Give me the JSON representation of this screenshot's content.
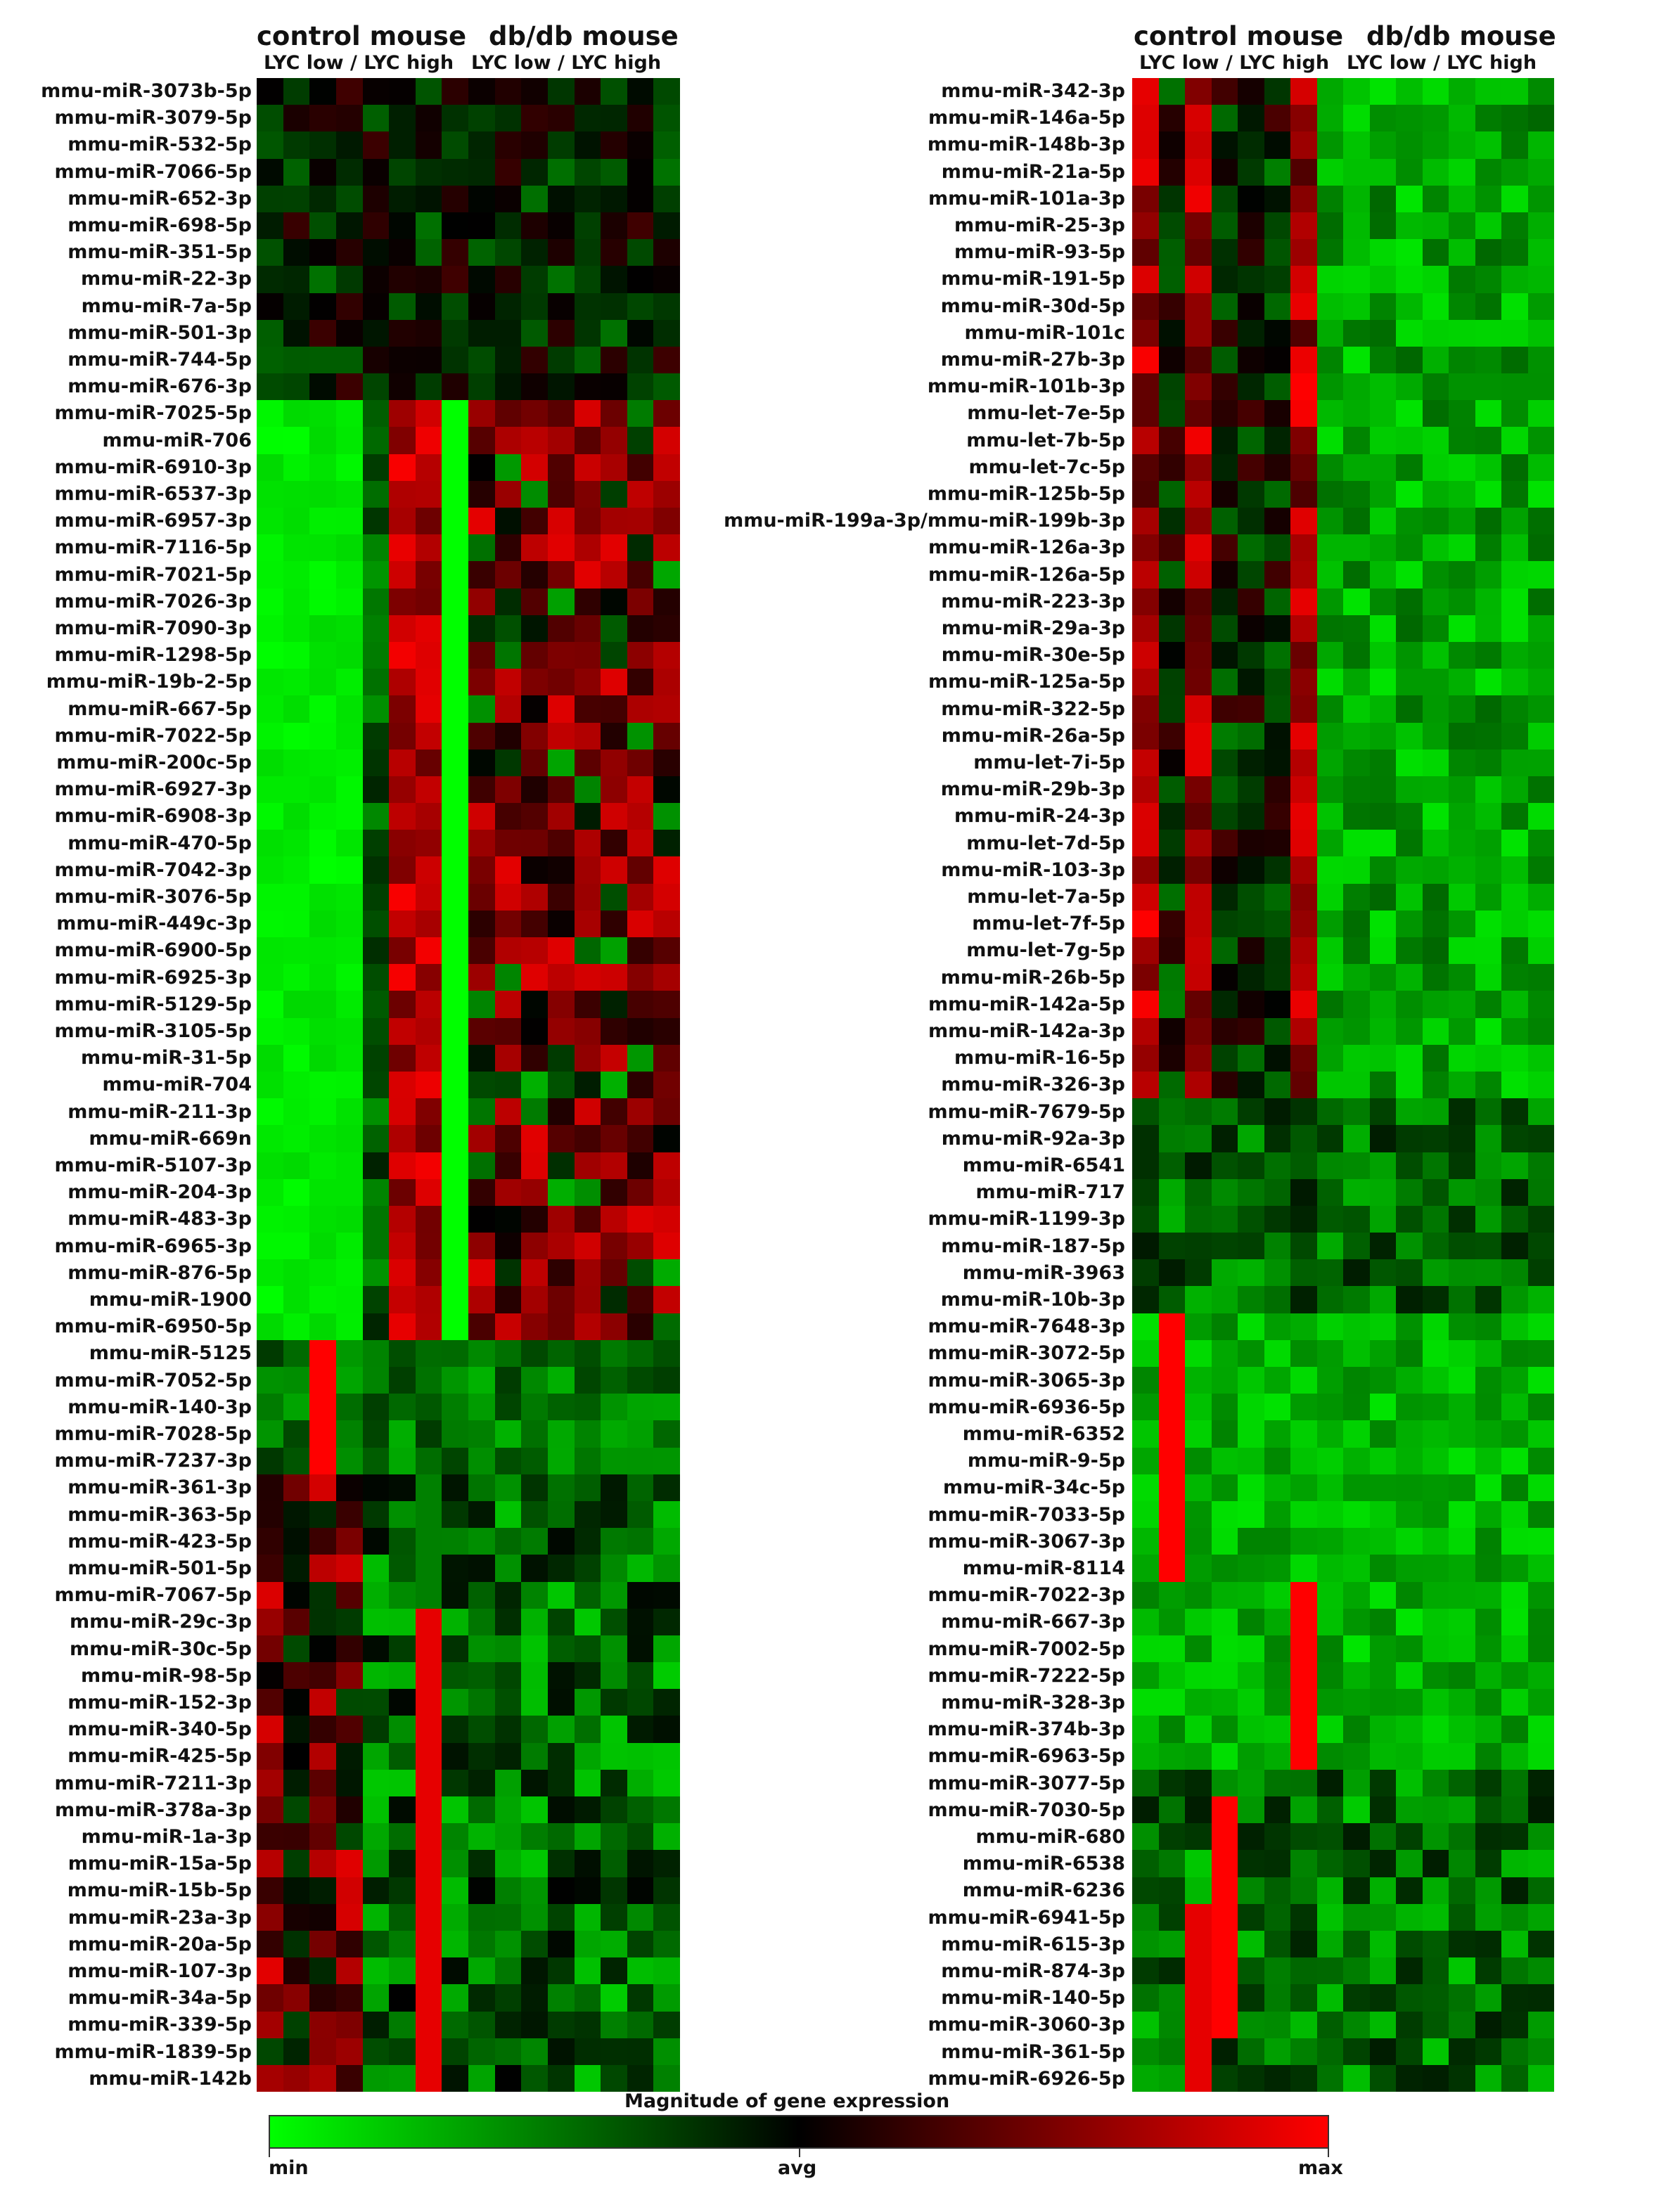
{
  "chart_data": [
    {
      "type": "heatmap",
      "panel": "left",
      "group_titles": [
        "control mouse",
        "db/db mouse"
      ],
      "sub_titles": [
        "LYC low / LYC high",
        "LYC low / LYC high"
      ],
      "rows": [
        "mmu-miR-3073b-5p",
        "mmu-miR-3079-5p",
        "mmu-miR-532-5p",
        "mmu-miR-7066-5p",
        "mmu-miR-652-3p",
        "mmu-miR-698-5p",
        "mmu-miR-351-5p",
        "mmu-miR-22-3p",
        "mmu-miR-7a-5p",
        "mmu-miR-501-3p",
        "mmu-miR-744-5p",
        "mmu-miR-676-3p",
        "mmu-miR-7025-5p",
        "mmu-miR-706",
        "mmu-miR-6910-3p",
        "mmu-miR-6537-3p",
        "mmu-miR-6957-3p",
        "mmu-miR-7116-5p",
        "mmu-miR-7021-5p",
        "mmu-miR-7026-3p",
        "mmu-miR-7090-3p",
        "mmu-miR-1298-5p",
        "mmu-miR-19b-2-5p",
        "mmu-miR-667-5p",
        "mmu-miR-7022-5p",
        "mmu-miR-200c-5p",
        "mmu-miR-6927-3p",
        "mmu-miR-6908-3p",
        "mmu-miR-470-5p",
        "mmu-miR-7042-3p",
        "mmu-miR-3076-5p",
        "mmu-miR-449c-3p",
        "mmu-miR-6900-5p",
        "mmu-miR-6925-3p",
        "mmu-miR-5129-5p",
        "mmu-miR-3105-5p",
        "mmu-miR-31-5p",
        "mmu-miR-704",
        "mmu-miR-211-3p",
        "mmu-miR-669n",
        "mmu-miR-5107-3p",
        "mmu-miR-204-3p",
        "mmu-miR-483-3p",
        "mmu-miR-6965-3p",
        "mmu-miR-876-5p",
        "mmu-miR-1900",
        "mmu-miR-6950-5p",
        "mmu-miR-5125",
        "mmu-miR-7052-5p",
        "mmu-miR-140-3p",
        "mmu-miR-7028-5p",
        "mmu-miR-7237-3p",
        "mmu-miR-361-3p",
        "mmu-miR-363-5p",
        "mmu-miR-423-5p",
        "mmu-miR-501-5p",
        "mmu-miR-7067-5p",
        "mmu-miR-29c-3p",
        "mmu-miR-30c-5p",
        "mmu-miR-98-5p",
        "mmu-miR-152-3p",
        "mmu-miR-340-5p",
        "mmu-miR-425-5p",
        "mmu-miR-7211-3p",
        "mmu-miR-378a-3p",
        "mmu-miR-1a-3p",
        "mmu-miR-15a-5p",
        "mmu-miR-15b-5p",
        "mmu-miR-23a-3p",
        "mmu-miR-20a-5p",
        "mmu-miR-107-3p",
        "mmu-miR-34a-5p",
        "mmu-miR-339-5p",
        "mmu-miR-1839-5p",
        "mmu-miR-142b"
      ]
    },
    {
      "type": "heatmap",
      "panel": "right",
      "group_titles": [
        "control mouse",
        "db/db mouse"
      ],
      "sub_titles": [
        "LYC low / LYC high",
        "LYC low / LYC high"
      ],
      "rows": [
        "mmu-miR-342-3p",
        "mmu-miR-146a-5p",
        "mmu-miR-148b-3p",
        "mmu-miR-21a-5p",
        "mmu-miR-101a-3p",
        "mmu-miR-25-3p",
        "mmu-miR-93-5p",
        "mmu-miR-191-5p",
        "mmu-miR-30d-5p",
        "mmu-miR-101c",
        "mmu-miR-27b-3p",
        "mmu-miR-101b-3p",
        "mmu-let-7e-5p",
        "mmu-let-7b-5p",
        "mmu-let-7c-5p",
        "mmu-miR-125b-5p",
        "mmu-miR-199a-3p/mmu-miR-199b-3p",
        "mmu-miR-126a-3p",
        "mmu-miR-126a-5p",
        "mmu-miR-223-3p",
        "mmu-miR-29a-3p",
        "mmu-miR-30e-5p",
        "mmu-miR-125a-5p",
        "mmu-miR-322-5p",
        "mmu-miR-26a-5p",
        "mmu-let-7i-5p",
        "mmu-miR-29b-3p",
        "mmu-miR-24-3p",
        "mmu-let-7d-5p",
        "mmu-miR-103-3p",
        "mmu-let-7a-5p",
        "mmu-let-7f-5p",
        "mmu-let-7g-5p",
        "mmu-miR-26b-5p",
        "mmu-miR-142a-5p",
        "mmu-miR-142a-3p",
        "mmu-miR-16-5p",
        "mmu-miR-326-3p",
        "mmu-miR-7679-5p",
        "mmu-miR-92a-3p",
        "mmu-miR-6541",
        "mmu-miR-717",
        "mmu-miR-1199-3p",
        "mmu-miR-187-5p",
        "mmu-miR-3963",
        "mmu-miR-10b-3p",
        "mmu-miR-7648-3p",
        "mmu-miR-3072-5p",
        "mmu-miR-3065-3p",
        "mmu-miR-6936-5p",
        "mmu-miR-6352",
        "mmu-miR-9-5p",
        "mmu-miR-34c-5p",
        "mmu-miR-7033-5p",
        "mmu-miR-3067-3p",
        "mmu-miR-8114",
        "mmu-miR-7022-3p",
        "mmu-miR-667-3p",
        "mmu-miR-7002-5p",
        "mmu-miR-7222-5p",
        "mmu-miR-328-3p",
        "mmu-miR-374b-3p",
        "mmu-miR-6963-5p",
        "mmu-miR-3077-5p",
        "mmu-miR-7030-5p",
        "mmu-miR-680",
        "mmu-miR-6538",
        "mmu-miR-6236",
        "mmu-miR-6941-5p",
        "mmu-miR-615-3p",
        "mmu-miR-874-3p",
        "mmu-miR-140-5p",
        "mmu-miR-3060-3p",
        "mmu-miR-361-5p",
        "mmu-miR-6926-5p"
      ]
    }
  ],
  "legend": {
    "title": "Magnitude of gene expression",
    "ticks": [
      "min",
      "avg",
      "max"
    ],
    "colors": {
      "min": "#00ff00",
      "avg": "#000000",
      "max": "#ff0000"
    }
  }
}
